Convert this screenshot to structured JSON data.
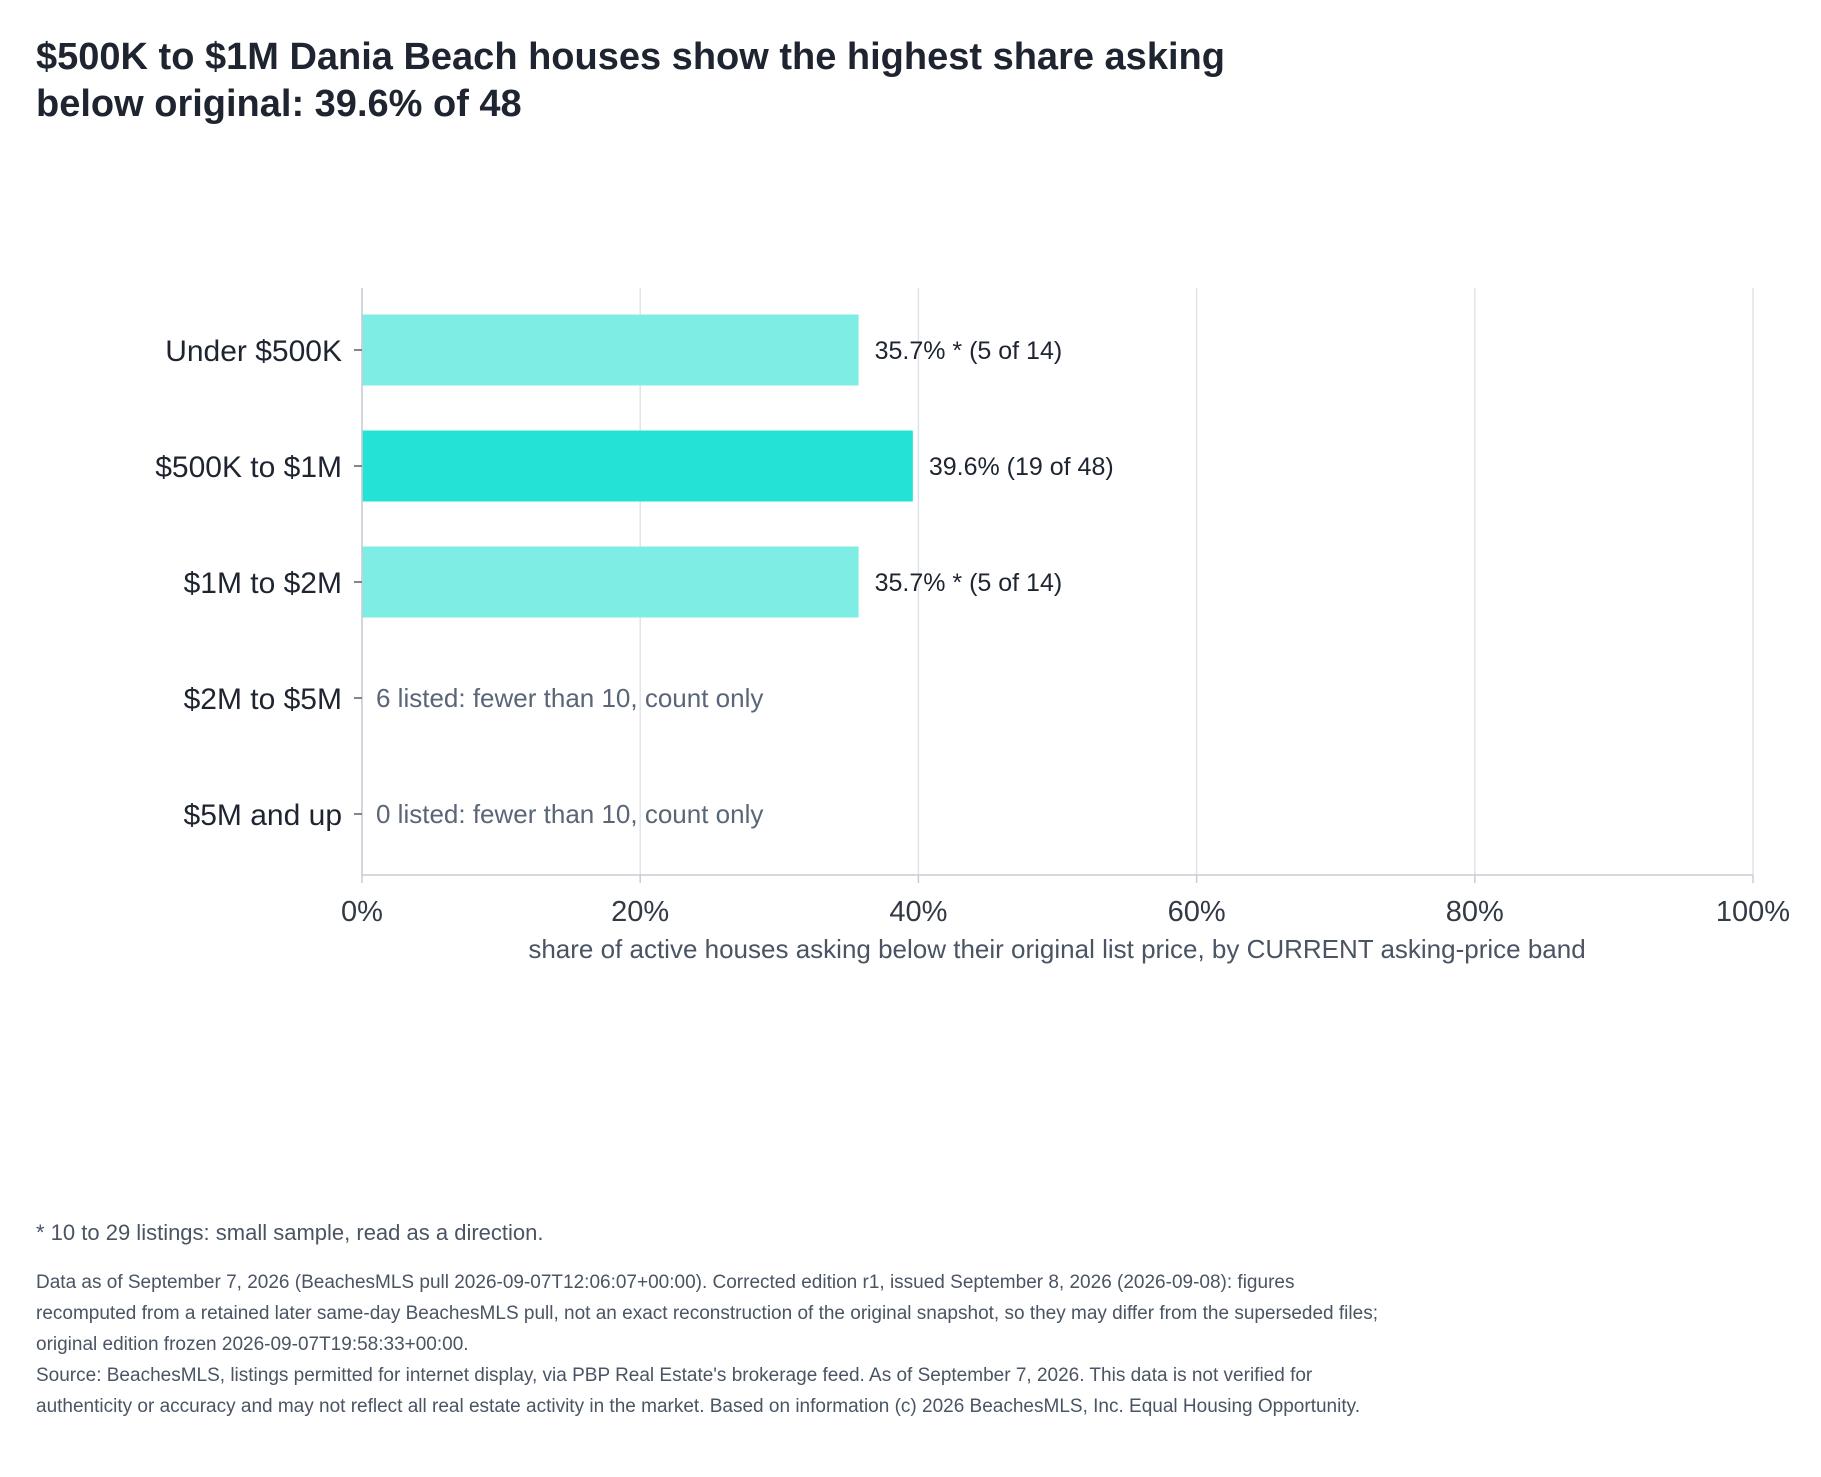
{
  "title": "$500K to $1M Dania Beach houses show the highest share asking below original: 39.6% of 48",
  "chart_data": {
    "type": "bar",
    "orientation": "horizontal",
    "categories": [
      "Under $500K",
      "$500K to $1M",
      "$1M to $2M",
      "$2M to $5M",
      "$5M and up"
    ],
    "values": [
      35.7,
      39.6,
      35.7,
      null,
      null
    ],
    "value_labels": [
      "35.7% *  (5 of 14)",
      "39.6%  (19 of 48)",
      "35.7% *  (5 of 14)",
      "",
      ""
    ],
    "notes": [
      "",
      "",
      "",
      "6 listed: fewer than 10, count only",
      "0 listed: fewer than 10, count only"
    ],
    "highlight_index": 1,
    "xlabel": "share of active houses asking below their original list price, by CURRENT asking-price band",
    "ylabel": "",
    "xlim": [
      0,
      100
    ],
    "x_ticks": [
      0,
      20,
      40,
      60,
      80,
      100
    ],
    "x_tick_labels": [
      "0%",
      "20%",
      "40%",
      "60%",
      "80%",
      "100%"
    ],
    "grid": true,
    "colors": {
      "bar": "#7eeee5",
      "highlight": "#25e2d6",
      "grid": "#e1e3ea",
      "axis": "#c8ccd6"
    }
  },
  "footnote": "* 10 to 29 listings: small sample, read as a direction.",
  "data_note": "Data as of September 7, 2026 (BeachesMLS pull 2026-09-07T12:06:07+00:00). Corrected edition r1, issued September 8, 2026 (2026-09-08): figures recomputed from a retained later same-day BeachesMLS pull, not an exact reconstruction of the original snapshot, so they may differ from the superseded files; original edition frozen 2026-09-07T19:58:33+00:00.",
  "source": "Source: BeachesMLS, listings permitted for internet display, via PBP Real Estate's brokerage feed. As of September 7, 2026. This data is not verified for authenticity or accuracy and may not reflect all real estate activity in the market. Based on information (c) 2026 BeachesMLS, Inc. Equal Housing Opportunity."
}
